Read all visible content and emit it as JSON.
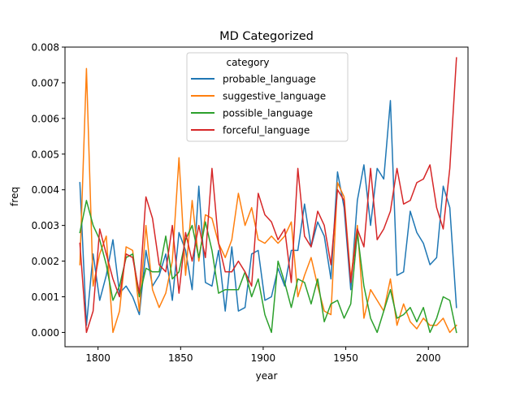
{
  "chart_data": {
    "type": "line",
    "title": "MD Categorized",
    "xlabel": "year",
    "ylabel": "freq",
    "xlim": [
      1780,
      2024
    ],
    "ylim": [
      -0.0004,
      0.008
    ],
    "x_ticks": [
      1800,
      1850,
      1900,
      1950,
      2000
    ],
    "x_tick_labels": [
      "1800",
      "1850",
      "1900",
      "1950",
      "2000"
    ],
    "y_ticks": [
      0,
      0.001,
      0.002,
      0.003,
      0.004,
      0.005,
      0.006,
      0.007,
      0.008
    ],
    "y_tick_labels": [
      "0.000",
      "0.001",
      "0.002",
      "0.003",
      "0.004",
      "0.005",
      "0.006",
      "0.007",
      "0.008"
    ],
    "grid": false,
    "legend": {
      "title": "category",
      "placement": "upper-center"
    },
    "x": [
      1789,
      1793,
      1797,
      1801,
      1805,
      1809,
      1813,
      1817,
      1821,
      1825,
      1829,
      1833,
      1837,
      1841,
      1845,
      1849,
      1853,
      1857,
      1861,
      1865,
      1869,
      1873,
      1877,
      1881,
      1885,
      1889,
      1893,
      1897,
      1901,
      1905,
      1909,
      1913,
      1917,
      1921,
      1925,
      1929,
      1933,
      1937,
      1941,
      1945,
      1949,
      1953,
      1957,
      1961,
      1965,
      1969,
      1973,
      1977,
      1981,
      1985,
      1989,
      1993,
      1997,
      2001,
      2005,
      2009,
      2013,
      2017
    ],
    "series": [
      {
        "name": "probable_language",
        "color": "#1f77b4",
        "values": [
          0.0042,
          0.0002,
          0.0022,
          0.0009,
          0.0016,
          0.0026,
          0.0011,
          0.0013,
          0.001,
          0.0005,
          0.0023,
          0.0013,
          0.0016,
          0.0022,
          0.0009,
          0.0028,
          0.0023,
          0.0012,
          0.0041,
          0.0014,
          0.0013,
          0.0023,
          0.0006,
          0.0024,
          0.0006,
          0.0007,
          0.0022,
          0.0023,
          0.0009,
          0.001,
          0.0018,
          0.0013,
          0.0023,
          0.0023,
          0.0036,
          0.0024,
          0.0031,
          0.0027,
          0.0015,
          0.0045,
          0.0035,
          0.0012,
          0.0037,
          0.0047,
          0.003,
          0.0046,
          0.0043,
          0.0065,
          0.0016,
          0.0017,
          0.0034,
          0.0028,
          0.0025,
          0.0019,
          0.0021,
          0.0041,
          0.0035,
          0.0007
        ]
      },
      {
        "name": "suggestive_language",
        "color": "#ff7f0e",
        "values": [
          0.0019,
          0.0074,
          0.0013,
          0.0022,
          0.0027,
          0.0,
          0.0006,
          0.0024,
          0.0023,
          0.0006,
          0.003,
          0.0012,
          0.0007,
          0.0011,
          0.002,
          0.0049,
          0.0016,
          0.0037,
          0.002,
          0.0033,
          0.0032,
          0.0025,
          0.0021,
          0.0026,
          0.0039,
          0.003,
          0.0035,
          0.0026,
          0.0025,
          0.0027,
          0.0025,
          0.0027,
          0.0031,
          0.001,
          0.0016,
          0.0021,
          0.0013,
          0.0006,
          0.0005,
          0.0042,
          0.0038,
          0.0015,
          0.003,
          0.0004,
          0.0012,
          0.0009,
          0.0006,
          0.0015,
          0.0002,
          0.0008,
          0.0003,
          0.0001,
          0.0004,
          0.0002,
          0.0002,
          0.0004,
          0.0,
          0.0002
        ]
      },
      {
        "name": "possible_language",
        "color": "#2ca02c",
        "values": [
          0.0028,
          0.0037,
          0.003,
          0.0026,
          0.0019,
          0.0009,
          0.0013,
          0.0021,
          0.0022,
          0.001,
          0.0018,
          0.0017,
          0.0017,
          0.0027,
          0.0015,
          0.0017,
          0.0026,
          0.003,
          0.0021,
          0.0031,
          0.0023,
          0.0011,
          0.0012,
          0.0012,
          0.0012,
          0.0017,
          0.001,
          0.0015,
          0.0005,
          0.0,
          0.002,
          0.0014,
          0.0007,
          0.0015,
          0.0014,
          0.0008,
          0.0015,
          0.0003,
          0.0008,
          0.0009,
          0.0004,
          0.0008,
          0.0028,
          0.0013,
          0.0004,
          0.0,
          0.0006,
          0.0012,
          0.0004,
          0.0005,
          0.0007,
          0.0003,
          0.0007,
          0.0,
          0.0004,
          0.001,
          0.0009,
          0.0
        ]
      },
      {
        "name": "forceful_language",
        "color": "#d62728",
        "values": [
          0.0025,
          0.0,
          0.0006,
          0.0029,
          0.0022,
          0.0015,
          0.001,
          0.0022,
          0.0021,
          0.0011,
          0.0038,
          0.0032,
          0.0019,
          0.0017,
          0.003,
          0.0011,
          0.0028,
          0.002,
          0.003,
          0.0021,
          0.0046,
          0.0025,
          0.0017,
          0.0017,
          0.002,
          0.0017,
          0.0013,
          0.0039,
          0.0033,
          0.0031,
          0.0026,
          0.0029,
          0.0014,
          0.0046,
          0.0027,
          0.0024,
          0.0034,
          0.003,
          0.0019,
          0.004,
          0.0037,
          0.0014,
          0.0029,
          0.0024,
          0.0046,
          0.0026,
          0.0029,
          0.0034,
          0.0046,
          0.0036,
          0.0037,
          0.0042,
          0.0043,
          0.0047,
          0.0035,
          0.0029,
          0.0046,
          0.0077
        ]
      }
    ]
  }
}
